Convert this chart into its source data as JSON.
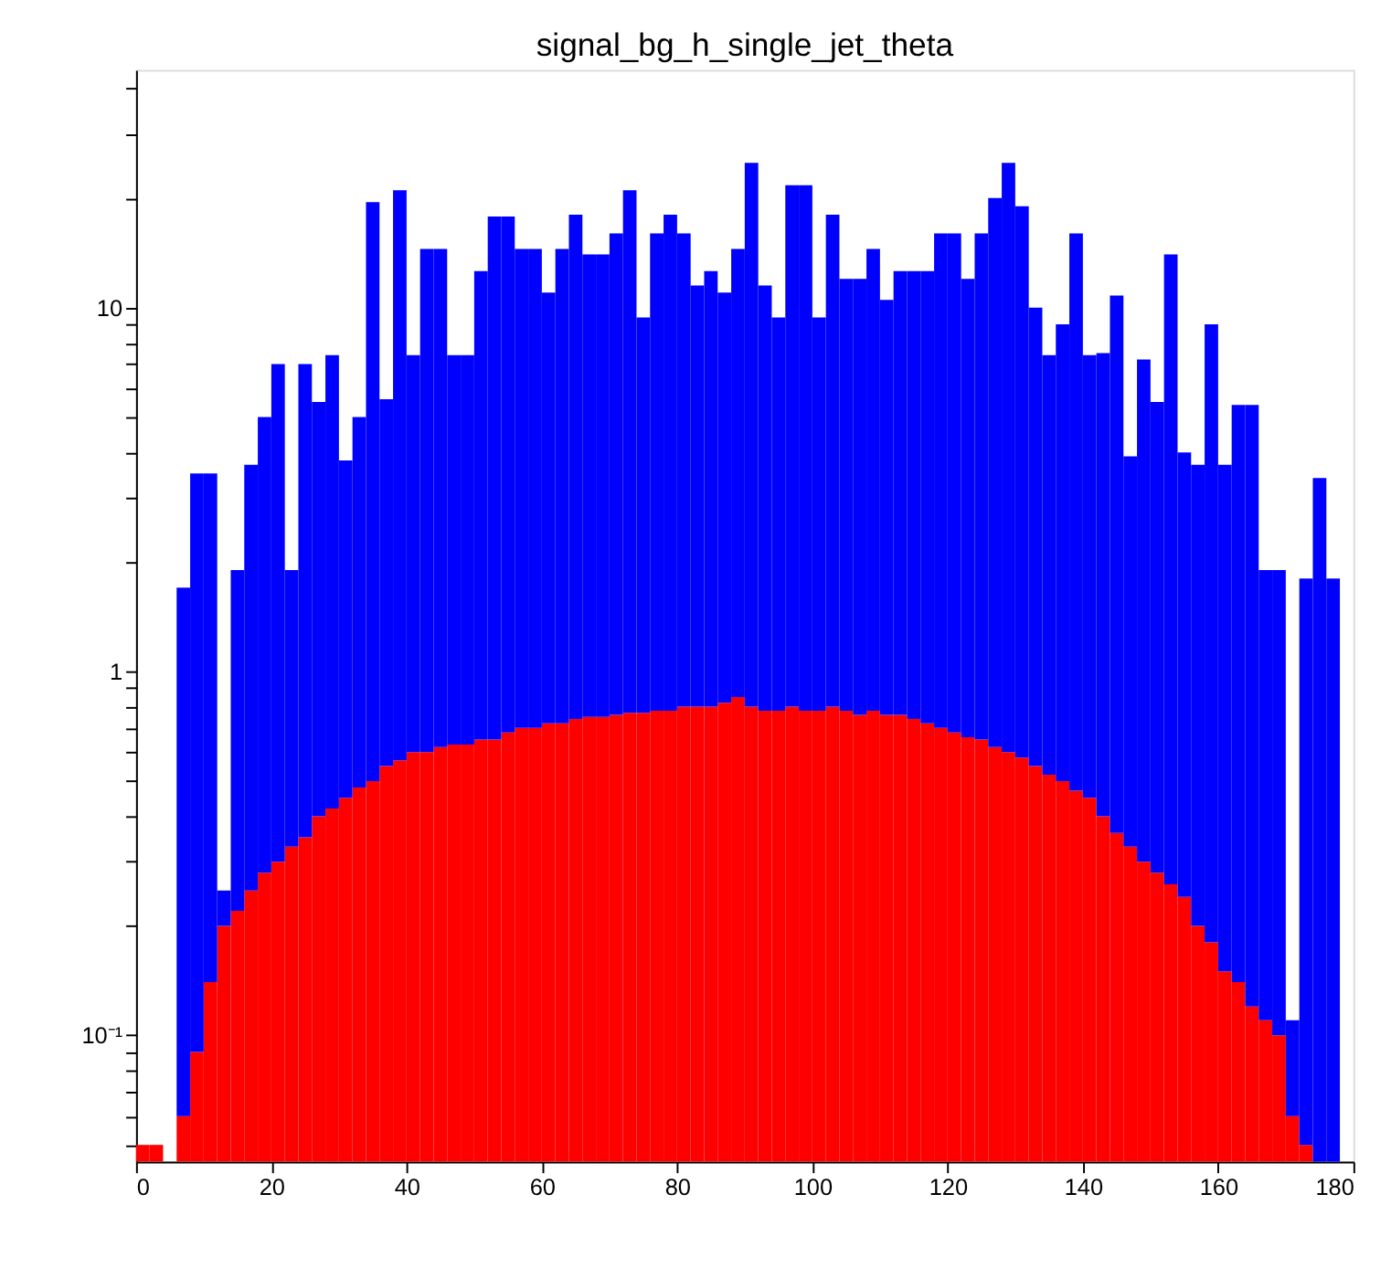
{
  "chart_data": {
    "type": "bar",
    "title": "signal_bg_h_single_jet_theta",
    "stacked": true,
    "x": [
      1,
      3,
      5,
      7,
      9,
      11,
      13,
      15,
      17,
      19,
      21,
      23,
      25,
      27,
      29,
      31,
      33,
      35,
      37,
      39,
      41,
      43,
      45,
      47,
      49,
      51,
      53,
      55,
      57,
      59,
      61,
      63,
      65,
      67,
      69,
      71,
      73,
      75,
      77,
      79,
      81,
      83,
      85,
      87,
      89,
      91,
      93,
      95,
      97,
      99,
      101,
      103,
      105,
      107,
      109,
      111,
      113,
      115,
      117,
      119,
      121,
      123,
      125,
      127,
      129,
      131,
      133,
      135,
      137,
      139,
      141,
      143,
      145,
      147,
      149,
      151,
      153,
      155,
      157,
      159,
      161,
      163,
      165,
      167,
      169,
      171,
      173,
      175,
      177
    ],
    "series": [
      {
        "color": "#ff0000",
        "values": [
          0.05,
          0.05,
          null,
          0.06,
          0.09,
          0.14,
          0.2,
          0.22,
          0.25,
          0.28,
          0.3,
          0.33,
          0.35,
          0.4,
          0.42,
          0.45,
          0.48,
          0.5,
          0.55,
          0.57,
          0.6,
          0.6,
          0.62,
          0.63,
          0.63,
          0.65,
          0.65,
          0.68,
          0.7,
          0.7,
          0.72,
          0.72,
          0.74,
          0.75,
          0.75,
          0.76,
          0.77,
          0.77,
          0.78,
          0.78,
          0.8,
          0.8,
          0.8,
          0.82,
          0.85,
          0.8,
          0.78,
          0.78,
          0.8,
          0.78,
          0.78,
          0.8,
          0.78,
          0.76,
          0.78,
          0.76,
          0.76,
          0.74,
          0.72,
          0.7,
          0.68,
          0.66,
          0.65,
          0.62,
          0.6,
          0.58,
          0.55,
          0.52,
          0.5,
          0.47,
          0.45,
          0.4,
          0.36,
          0.33,
          0.3,
          0.28,
          0.26,
          0.24,
          0.2,
          0.18,
          0.15,
          0.14,
          0.12,
          0.11,
          0.1,
          0.06,
          0.05,
          null,
          null
        ]
      },
      {
        "color": "#0000ff",
        "values": [
          null,
          null,
          null,
          1.64,
          3.41,
          3.36,
          0.05,
          1.68,
          3.45,
          4.72,
          6.7,
          1.57,
          6.65,
          5.1,
          6.98,
          3.35,
          4.52,
          19,
          5.05,
          20.43,
          6.8,
          13.9,
          13.88,
          6.77,
          6.77,
          11.95,
          17.15,
          17.12,
          13.8,
          13.8,
          10.28,
          13.78,
          17.26,
          13.25,
          13.25,
          15.24,
          20.23,
          8.63,
          15.22,
          17.22,
          15.2,
          10.7,
          11.8,
          10.18,
          13.65,
          24.2,
          10.72,
          8.62,
          20.9,
          20.92,
          8.62,
          17.2,
          11.22,
          11.24,
          13.72,
          9.74,
          11.84,
          11.86,
          11.88,
          15.3,
          15.32,
          11.34,
          15.35,
          19.38,
          24.4,
          18.42,
          9.45,
          6.88,
          8.5,
          15.53,
          6.95,
          7.1,
          10.44,
          3.57,
          6.9,
          5.22,
          13.74,
          3.76,
          3.5,
          8.82,
          3.55,
          5.26,
          5.28,
          1.79,
          1.8,
          0.05,
          1.75,
          3.4,
          1.8
        ]
      }
    ],
    "xlim": [
      0,
      180
    ],
    "xticks": [
      0,
      20,
      40,
      60,
      80,
      100,
      120,
      140,
      160,
      180
    ],
    "log": true,
    "ylim": [
      0.045,
      45
    ],
    "yticks": [
      {
        "value": 0.05,
        "label": null
      },
      {
        "value": 0.06,
        "label": null
      },
      {
        "value": 0.07,
        "label": null
      },
      {
        "value": 0.08,
        "label": null
      },
      {
        "value": 0.09,
        "label": null
      },
      {
        "value": 0.1,
        "label": "10⁻¹"
      },
      {
        "value": 0.2,
        "label": null
      },
      {
        "value": 0.3,
        "label": null
      },
      {
        "value": 0.4,
        "label": null
      },
      {
        "value": 0.5,
        "label": null
      },
      {
        "value": 0.6,
        "label": null
      },
      {
        "value": 0.7,
        "label": null
      },
      {
        "value": 0.8,
        "label": null
      },
      {
        "value": 0.9,
        "label": null
      },
      1,
      {
        "value": 2,
        "label": null
      },
      {
        "value": 3,
        "label": null
      },
      {
        "value": 4,
        "label": null
      },
      {
        "value": 5,
        "label": null
      },
      {
        "value": 6,
        "label": null
      },
      {
        "value": 7,
        "label": null
      },
      {
        "value": 8,
        "label": null
      },
      {
        "value": 9,
        "label": null
      },
      10,
      {
        "value": 20,
        "label": null
      },
      {
        "value": 30,
        "label": null
      },
      {
        "value": 40,
        "label": null
      }
    ],
    "grid": false
  }
}
